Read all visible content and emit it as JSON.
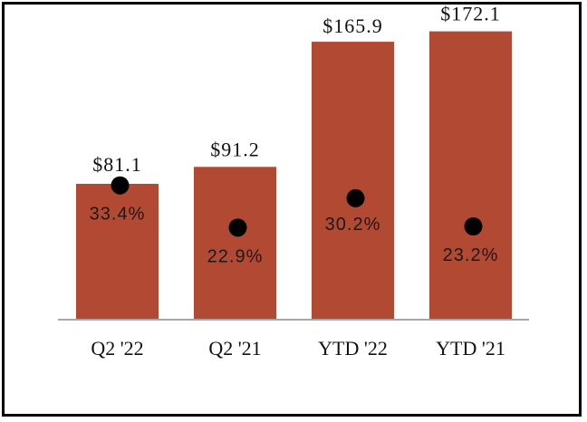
{
  "chart_data": {
    "type": "bar",
    "title": "",
    "xlabel": "",
    "ylabel": "",
    "categories": [
      "Q2 '22",
      "Q2 '21",
      "YTD '22",
      "YTD '21"
    ],
    "series": [
      {
        "values": [
          81.1,
          91.2,
          165.9,
          172.1
        ],
        "value_labels": [
          "$81.1",
          "$91.2",
          "$165.9",
          "$172.1"
        ],
        "color": "#b24a33"
      },
      {
        "values": [
          33.4,
          22.9,
          30.2,
          23.2
        ],
        "value_labels": [
          "33.4%",
          "22.9%",
          "30.2%",
          "23.2%"
        ],
        "marker": "circle",
        "color": "#000000"
      }
    ],
    "ylim": [
      0,
      180
    ],
    "secondary_ylim": [
      0,
      75
    ],
    "grid": false,
    "legend": "none",
    "baseline_color": "#a6a6a6"
  }
}
